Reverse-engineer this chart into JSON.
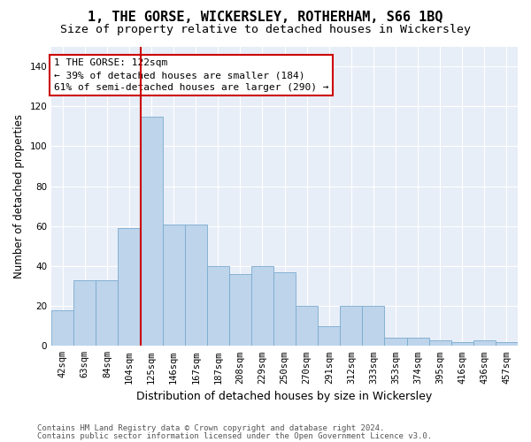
{
  "title": "1, THE GORSE, WICKERSLEY, ROTHERHAM, S66 1BQ",
  "subtitle": "Size of property relative to detached houses in Wickersley",
  "xlabel": "Distribution of detached houses by size in Wickersley",
  "ylabel": "Number of detached properties",
  "categories": [
    "42sqm",
    "63sqm",
    "84sqm",
    "104sqm",
    "125sqm",
    "146sqm",
    "167sqm",
    "187sqm",
    "208sqm",
    "229sqm",
    "250sqm",
    "270sqm",
    "291sqm",
    "312sqm",
    "333sqm",
    "353sqm",
    "374sqm",
    "395sqm",
    "416sqm",
    "436sqm",
    "457sqm"
  ],
  "values": [
    18,
    33,
    33,
    59,
    115,
    61,
    61,
    40,
    36,
    40,
    37,
    20,
    10,
    20,
    20,
    4,
    4,
    3,
    2,
    3,
    2
  ],
  "bar_color": "#bdd4eb",
  "bar_edge_color": "#7aabcf",
  "vline_color": "#cc0000",
  "annotation_text": "1 THE GORSE: 122sqm\n← 39% of detached houses are smaller (184)\n61% of semi-detached houses are larger (290) →",
  "annotation_box_color": "#ffffff",
  "annotation_box_edge": "#cc0000",
  "ylim": [
    0,
    150
  ],
  "yticks": [
    0,
    20,
    40,
    60,
    80,
    100,
    120,
    140
  ],
  "background_color": "#e8eef7",
  "grid_color": "#ffffff",
  "footer_line1": "Contains HM Land Registry data © Crown copyright and database right 2024.",
  "footer_line2": "Contains public sector information licensed under the Open Government Licence v3.0.",
  "title_fontsize": 11,
  "subtitle_fontsize": 9.5,
  "xlabel_fontsize": 9,
  "ylabel_fontsize": 8.5,
  "tick_fontsize": 7.5,
  "annotation_fontsize": 8,
  "footer_fontsize": 6.5
}
